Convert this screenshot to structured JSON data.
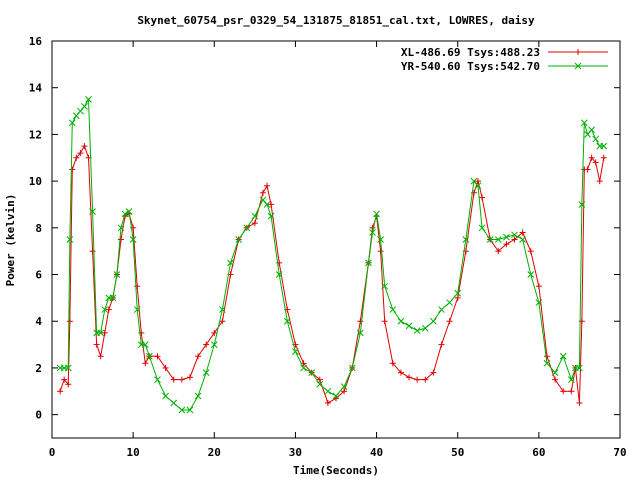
{
  "chart_data": {
    "type": "line",
    "title": "Skynet_60754_psr_0329_54_131875_81851_cal.txt, LOWRES, daisy",
    "xlabel": "Time(Seconds)",
    "ylabel": "Power (kelvin)",
    "xlim": [
      0,
      70
    ],
    "ylim": [
      -1,
      16
    ],
    "xticks": [
      "0",
      "10",
      "20",
      "30",
      "40",
      "50",
      "60",
      "70"
    ],
    "yticks": [
      "0",
      "2",
      "4",
      "6",
      "8",
      "10",
      "12",
      "14",
      "16"
    ],
    "grid": false,
    "legend_position": "top-right",
    "series": [
      {
        "name": "XL-486.69 Tsys:488.23",
        "color": "#e00000",
        "marker": "plus",
        "x": [
          1,
          1.5,
          2,
          2.2,
          2.5,
          3,
          3.5,
          4,
          4.5,
          5,
          5.5,
          6,
          6.5,
          7,
          7.5,
          8,
          8.5,
          9,
          9.5,
          10,
          10.5,
          11,
          11.5,
          12,
          13,
          14,
          15,
          16,
          17,
          18,
          19,
          20,
          21,
          22,
          23,
          24,
          25,
          26,
          26.5,
          27,
          28,
          29,
          30,
          31,
          32,
          33,
          34,
          35,
          36,
          37,
          38,
          39,
          39.5,
          40,
          40.5,
          41,
          42,
          43,
          44,
          45,
          46,
          47,
          48,
          49,
          50,
          51,
          52,
          52.5,
          53,
          54,
          55,
          56,
          57,
          58,
          59,
          60,
          61,
          62,
          63,
          64,
          64.5,
          65,
          65.3,
          65.6,
          66,
          66.5,
          67,
          67.5,
          68
        ],
        "y": [
          1,
          1.5,
          1.3,
          4,
          10.5,
          11,
          11.2,
          11.5,
          11,
          7,
          3,
          2.5,
          3.5,
          4.5,
          5,
          6,
          7.5,
          8.5,
          8.6,
          8,
          5.5,
          3.5,
          2.2,
          2.5,
          2.5,
          2,
          1.5,
          1.5,
          1.6,
          2.5,
          3,
          3.5,
          4,
          6,
          7.5,
          8,
          8.2,
          9.5,
          9.8,
          9,
          6.5,
          4.5,
          3,
          2.2,
          1.8,
          1.5,
          0.5,
          0.7,
          1,
          2,
          4,
          6.5,
          8,
          8.5,
          7,
          4,
          2.2,
          1.8,
          1.6,
          1.5,
          1.5,
          1.8,
          3,
          4,
          5,
          7,
          9.5,
          10,
          9.3,
          7.5,
          7,
          7.3,
          7.5,
          7.8,
          7,
          5.5,
          2.5,
          1.5,
          1,
          1,
          2,
          0.5,
          4,
          10.5,
          10.5,
          11,
          10.8,
          10,
          11
        ]
      },
      {
        "name": "YR-540.60 Tsys:542.70",
        "color": "#00b000",
        "marker": "cross",
        "x": [
          1,
          1.5,
          2,
          2.2,
          2.5,
          3,
          3.5,
          4,
          4.5,
          5,
          5.5,
          6,
          6.5,
          7,
          7.5,
          8,
          8.5,
          9,
          9.5,
          10,
          10.5,
          11,
          11.5,
          12,
          13,
          14,
          15,
          16,
          17,
          18,
          19,
          20,
          21,
          22,
          23,
          24,
          25,
          26,
          26.5,
          27,
          28,
          29,
          30,
          31,
          32,
          33,
          34,
          35,
          36,
          37,
          38,
          39,
          39.5,
          40,
          40.5,
          41,
          42,
          43,
          44,
          45,
          46,
          47,
          48,
          49,
          50,
          51,
          52,
          52.5,
          53,
          54,
          55,
          56,
          57,
          58,
          59,
          60,
          61,
          62,
          63,
          64,
          64.5,
          65,
          65.3,
          65.6,
          66,
          66.5,
          67,
          67.5,
          68
        ],
        "y": [
          2,
          2,
          2,
          7.5,
          12.5,
          12.8,
          13,
          13.2,
          13.5,
          8.7,
          3.5,
          3.5,
          4.5,
          5,
          5,
          6,
          8,
          8.6,
          8.7,
          7.5,
          4.5,
          3,
          3,
          2.5,
          1.5,
          0.8,
          0.5,
          0.2,
          0.2,
          0.8,
          1.8,
          3,
          4.5,
          6.5,
          7.5,
          8,
          8.5,
          9.2,
          9,
          8.5,
          6,
          4,
          2.7,
          2,
          1.8,
          1.3,
          1,
          0.8,
          1.2,
          2,
          3.5,
          6.5,
          7.8,
          8.6,
          7.5,
          5.5,
          4.5,
          4,
          3.8,
          3.6,
          3.7,
          4,
          4.5,
          4.8,
          5.2,
          7.5,
          10,
          9.8,
          8,
          7.5,
          7.5,
          7.6,
          7.7,
          7.5,
          6,
          4.8,
          2.2,
          1.8,
          2.5,
          1.5,
          2,
          2,
          9,
          12.5,
          12,
          12.2,
          11.8,
          11.5,
          11.5
        ]
      }
    ]
  }
}
